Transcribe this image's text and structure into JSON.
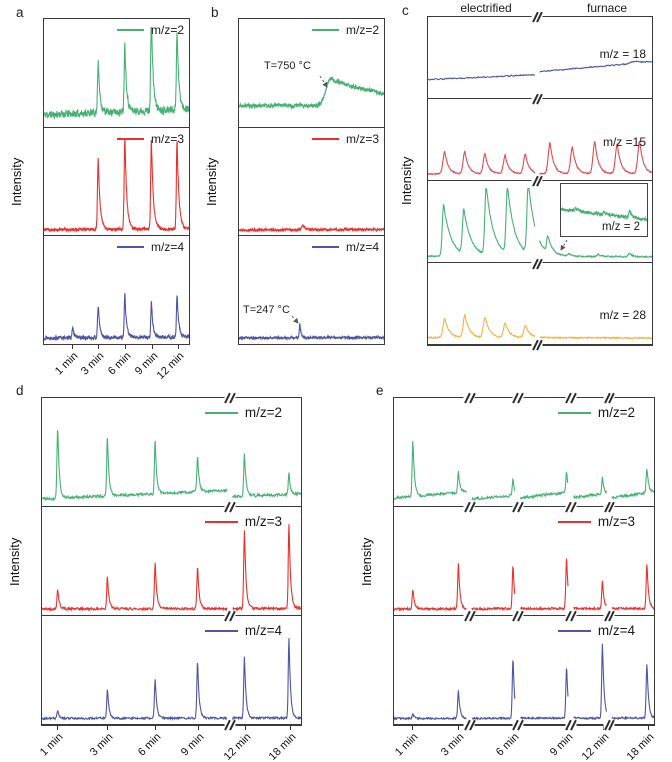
{
  "figure_background": "#ffffff",
  "colors": {
    "green": "#47b175",
    "red": "#e8302e",
    "red_soft": "#e2494f",
    "blue": "#4e55a2",
    "yellow": "#f2b546",
    "border": "#3a3a3a"
  },
  "chart_data": {
    "type": "line",
    "panels": {
      "a": {
        "letter": "a",
        "ylabel": "Intensity",
        "breaks": [],
        "x_ticks": [
          {
            "label": "1 min",
            "t": 0.197
          },
          {
            "label": "3 min",
            "t": 0.374
          },
          {
            "label": "6 min",
            "t": 0.558
          },
          {
            "label": "9 min",
            "t": 0.741
          },
          {
            "label": "12 min",
            "t": 0.918
          }
        ],
        "traces": [
          {
            "legend": "m/z=2",
            "color": "#47b175",
            "noise": 0.034,
            "smooth": 0.25,
            "baseline": [
              0.1,
              0.16
            ],
            "pw": 0.005,
            "pt": 0.012,
            "lw": 1.1,
            "seed": 11,
            "peaks": [
              {
                "t": 0.374,
                "h": 0.5
              },
              {
                "t": 0.558,
                "h": 0.68
              },
              {
                "t": 0.741,
                "h": 0.95
              },
              {
                "t": 0.918,
                "h": 0.78
              }
            ]
          },
          {
            "legend": "m/z=3",
            "color": "#e8302e",
            "noise": 0.014,
            "smooth": 0.2,
            "baseline": [
              0.045,
              0.05
            ],
            "pw": 0.005,
            "pt": 0.013,
            "lw": 1.1,
            "seed": 12,
            "peaks": [
              {
                "t": 0.374,
                "h": 0.7
              },
              {
                "t": 0.558,
                "h": 0.92
              },
              {
                "t": 0.741,
                "h": 0.9
              },
              {
                "t": 0.918,
                "h": 0.88
              }
            ]
          },
          {
            "legend": "m/z=4",
            "color": "#4e55a2",
            "noise": 0.017,
            "smooth": 0.2,
            "baseline": [
              0.04,
              0.05
            ],
            "pw": 0.0045,
            "pt": 0.011,
            "lw": 1.1,
            "seed": 13,
            "peaks": [
              {
                "t": 0.197,
                "h": 0.1
              },
              {
                "t": 0.374,
                "h": 0.32
              },
              {
                "t": 0.558,
                "h": 0.44
              },
              {
                "t": 0.741,
                "h": 0.35
              },
              {
                "t": 0.918,
                "h": 0.42
              }
            ]
          }
        ]
      },
      "b": {
        "letter": "b",
        "ylabel": "Intensity",
        "breaks": [],
        "x_ticks": [],
        "annotations": [
          {
            "text": "T=750 °C"
          },
          {
            "text": "T=247 °C"
          }
        ],
        "traces": [
          {
            "legend": "m/z=2",
            "color": "#47b175",
            "noise": 0.02,
            "smooth": 0.3,
            "baseline": [
              0.19,
              0.2
            ],
            "lw": 1.1,
            "seed": 21,
            "peaks": [
              {
                "t": 0.63,
                "h": 0.26,
                "w": 0.03,
                "tail": 0.45
              }
            ]
          },
          {
            "legend": "m/z=3",
            "color": "#e8302e",
            "noise": 0.01,
            "smooth": 0.2,
            "baseline": [
              0.04,
              0.045
            ],
            "lw": 1.1,
            "seed": 22,
            "peaks": [
              {
                "t": 0.44,
                "h": 0.05,
                "w": 0.008,
                "tail": 0.015
              }
            ]
          },
          {
            "legend": "m/z=4",
            "color": "#4e55a2",
            "noise": 0.01,
            "smooth": 0.2,
            "baseline": [
              0.04,
              0.045
            ],
            "lw": 1.1,
            "seed": 23,
            "peaks": [
              {
                "t": 0.42,
                "h": 0.15,
                "w": 0.004,
                "tail": 0.008
              }
            ]
          }
        ]
      },
      "c": {
        "letter": "c",
        "ylabel": "Intensity",
        "top_labels": [
          "electrified",
          "furnace"
        ],
        "breaks": [
          0.487
        ],
        "x_ticks": [],
        "traces": [
          {
            "legend": "m/z = 18",
            "color": "#4e55a2",
            "noise": 0.006,
            "smooth": 0.6,
            "lw": 1,
            "baseline_segments": [
              [
                0,
                0.22,
                0.487,
                0.29
              ],
              [
                0.497,
                0.33,
                1,
                0.46
              ]
            ],
            "seed": 31,
            "peaks": [
              {
                "t": 0.93,
                "h": 0.03,
                "w": 0.02,
                "tail": 0.03
              }
            ]
          },
          {
            "legend": "m/z =15",
            "color": "#e2494f",
            "noise": 0.007,
            "smooth": 0.3,
            "baseline": [
              0.055,
              0.06
            ],
            "pw": 0.008,
            "pt": 0.016,
            "lw": 1.1,
            "seed": 32,
            "peaks": [
              {
                "t": 0.075,
                "h": 0.3
              },
              {
                "t": 0.165,
                "h": 0.3
              },
              {
                "t": 0.255,
                "h": 0.27
              },
              {
                "t": 0.345,
                "h": 0.25
              },
              {
                "t": 0.435,
                "h": 0.27
              },
              {
                "t": 0.545,
                "h": 0.42
              },
              {
                "t": 0.645,
                "h": 0.36
              },
              {
                "t": 0.745,
                "h": 0.44
              },
              {
                "t": 0.845,
                "h": 0.4
              },
              {
                "t": 0.945,
                "h": 0.44
              }
            ]
          },
          {
            "legend": "m/z = 2",
            "color": "#47b175",
            "noise": 0.008,
            "smooth": 0.3,
            "baseline": [
              0.05,
              0.045
            ],
            "pw": 0.006,
            "pt": 0.032,
            "lw": 1.1,
            "seed": 33,
            "peaks": [
              {
                "t": 0.07,
                "h": 0.7
              },
              {
                "t": 0.16,
                "h": 0.6
              },
              {
                "t": 0.26,
                "h": 0.93
              },
              {
                "t": 0.355,
                "h": 0.9
              },
              {
                "t": 0.448,
                "h": 0.96
              },
              {
                "t": 0.535,
                "h": 0.22,
                "w": 0.005,
                "tail": 0.02
              },
              {
                "t": 0.63,
                "h": 0.035,
                "w": 0.006,
                "tail": 0.012
              },
              {
                "t": 0.76,
                "h": 0.03,
                "w": 0.006,
                "tail": 0.012
              },
              {
                "t": 0.9,
                "h": 0.045,
                "w": 0.006,
                "tail": 0.012
              }
            ]
          },
          {
            "legend": "m/z = 28",
            "color": "#f2b546",
            "noise": 0.008,
            "smooth": 0.3,
            "baseline": [
              0.06,
              0.055
            ],
            "pw": 0.0075,
            "pt": 0.02,
            "lw": 1.1,
            "seed": 34,
            "peaks": [
              {
                "t": 0.075,
                "h": 0.26
              },
              {
                "t": 0.165,
                "h": 0.3
              },
              {
                "t": 0.255,
                "h": 0.28
              },
              {
                "t": 0.345,
                "h": 0.2
              },
              {
                "t": 0.435,
                "h": 0.16
              }
            ]
          },
          {
            "legend": "m/z = 2",
            "color": "#47b175",
            "noise": 0.03,
            "smooth": 0.45,
            "baseline": [
              0.55,
              0.32
            ],
            "lw": 1,
            "seed": 35,
            "ignore_breaks": true,
            "peaks": [
              {
                "t": 0.18,
                "h": 0.07,
                "w": 0.012,
                "tail": 0.03
              },
              {
                "t": 0.5,
                "h": 0.05,
                "w": 0.012,
                "tail": 0.03
              },
              {
                "t": 0.8,
                "h": 0.16,
                "w": 0.012,
                "tail": 0.025
              }
            ]
          }
        ]
      },
      "d": {
        "letter": "d",
        "ylabel": "Intensity",
        "breaks": [
          0.725
        ],
        "x_ticks": [
          {
            "label": "1 min",
            "t": 0.061
          },
          {
            "label": "3 min",
            "t": 0.253
          },
          {
            "label": "6 min",
            "t": 0.437
          },
          {
            "label": "9 min",
            "t": 0.601
          },
          {
            "label": "12 min",
            "t": 0.782
          },
          {
            "label": "18 min",
            "t": 0.954
          }
        ],
        "traces": [
          {
            "legend": "m/z=2",
            "color": "#47b175",
            "noise": 0.012,
            "smooth": 0.35,
            "pw": 0.003,
            "pt": 0.006,
            "lw": 1.1,
            "seed": 41,
            "baseline_segments": [
              [
                0,
                0.05,
                0.725,
                0.135
              ],
              [
                0.735,
                0.075,
                1,
                0.1
              ]
            ],
            "peaks": [
              {
                "t": 0.061,
                "h": 0.72
              },
              {
                "t": 0.253,
                "h": 0.6
              },
              {
                "t": 0.437,
                "h": 0.53
              },
              {
                "t": 0.601,
                "h": 0.36
              },
              {
                "t": 0.782,
                "h": 0.42
              },
              {
                "t": 0.954,
                "h": 0.2
              }
            ]
          },
          {
            "legend": "m/z=3",
            "color": "#e8302e",
            "noise": 0.011,
            "smooth": 0.25,
            "baseline": [
              0.04,
              0.045
            ],
            "pw": 0.003,
            "pt": 0.006,
            "lw": 1.1,
            "seed": 42,
            "peaks": [
              {
                "t": 0.061,
                "h": 0.2
              },
              {
                "t": 0.253,
                "h": 0.33
              },
              {
                "t": 0.437,
                "h": 0.46
              },
              {
                "t": 0.601,
                "h": 0.42
              },
              {
                "t": 0.782,
                "h": 0.78
              },
              {
                "t": 0.954,
                "h": 0.84
              }
            ]
          },
          {
            "legend": "m/z=4",
            "color": "#4e55a2",
            "noise": 0.009,
            "smooth": 0.25,
            "baseline": [
              0.035,
              0.04
            ],
            "pw": 0.003,
            "pt": 0.006,
            "lw": 1.1,
            "seed": 43,
            "peaks": [
              {
                "t": 0.061,
                "h": 0.07
              },
              {
                "t": 0.253,
                "h": 0.29
              },
              {
                "t": 0.437,
                "h": 0.39
              },
              {
                "t": 0.601,
                "h": 0.57
              },
              {
                "t": 0.782,
                "h": 0.62
              },
              {
                "t": 0.954,
                "h": 0.8
              }
            ]
          }
        ]
      },
      "e": {
        "letter": "e",
        "ylabel": "Intensity",
        "breaks": [
          0.29,
          0.475,
          0.68,
          0.828
        ],
        "x_ticks": [
          {
            "label": "1 min",
            "t": 0.073
          },
          {
            "label": "3 min",
            "t": 0.248
          },
          {
            "label": "6 min",
            "t": 0.458
          },
          {
            "label": "9 min",
            "t": 0.664
          },
          {
            "label": "12 min",
            "t": 0.802
          },
          {
            "label": "18 min",
            "t": 0.973
          }
        ],
        "traces": [
          {
            "legend": "m/z=2",
            "color": "#47b175",
            "noise": 0.011,
            "smooth": 0.35,
            "pw": 0.003,
            "pt": 0.006,
            "lw": 1.1,
            "seed": 51,
            "baseline_segments": [
              [
                0,
                0.06,
                0.29,
                0.125
              ],
              [
                0.3,
                0.05,
                0.475,
                0.09
              ],
              [
                0.485,
                0.06,
                0.68,
                0.12
              ],
              [
                0.69,
                0.065,
                0.828,
                0.105
              ],
              [
                0.838,
                0.065,
                1,
                0.12
              ]
            ],
            "peaks": [
              {
                "t": 0.073,
                "h": 0.55
              },
              {
                "t": 0.248,
                "h": 0.2
              },
              {
                "t": 0.458,
                "h": 0.16
              },
              {
                "t": 0.664,
                "h": 0.2
              },
              {
                "t": 0.802,
                "h": 0.17
              },
              {
                "t": 0.973,
                "h": 0.25
              }
            ]
          },
          {
            "legend": "m/z=3",
            "color": "#e8302e",
            "noise": 0.01,
            "smooth": 0.25,
            "baseline": [
              0.04,
              0.045
            ],
            "pw": 0.003,
            "pt": 0.006,
            "lw": 1.1,
            "seed": 52,
            "peaks": [
              {
                "t": 0.073,
                "h": 0.2
              },
              {
                "t": 0.248,
                "h": 0.45
              },
              {
                "t": 0.458,
                "h": 0.44
              },
              {
                "t": 0.664,
                "h": 0.52
              },
              {
                "t": 0.802,
                "h": 0.28
              },
              {
                "t": 0.973,
                "h": 0.45
              }
            ]
          },
          {
            "legend": "m/z=4",
            "color": "#4e55a2",
            "noise": 0.008,
            "smooth": 0.25,
            "baseline": [
              0.035,
              0.04
            ],
            "pw": 0.003,
            "pt": 0.006,
            "lw": 1.1,
            "seed": 53,
            "peaks": [
              {
                "t": 0.073,
                "h": 0.04
              },
              {
                "t": 0.248,
                "h": 0.28
              },
              {
                "t": 0.458,
                "h": 0.6
              },
              {
                "t": 0.664,
                "h": 0.52
              },
              {
                "t": 0.802,
                "h": 0.75
              },
              {
                "t": 0.973,
                "h": 0.55
              }
            ]
          }
        ]
      }
    }
  }
}
